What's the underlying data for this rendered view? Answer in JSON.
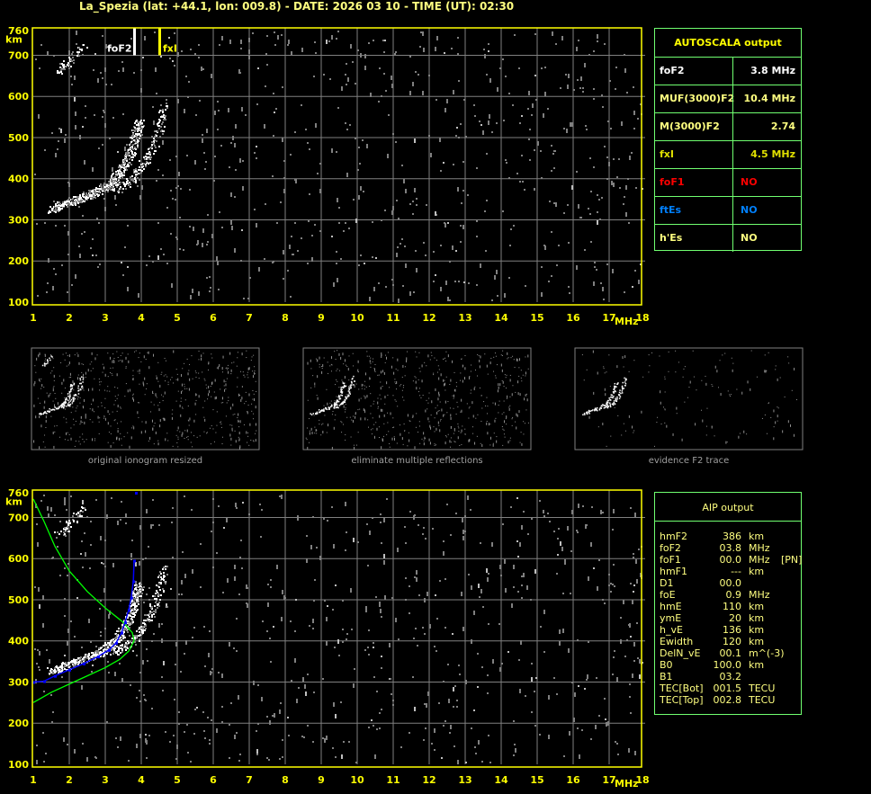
{
  "header": {
    "title": "La_Spezia (lat: +44.1, lon: 009.8) - DATE: 2026 03 10 - TIME (UT): 02:30"
  },
  "colors": {
    "axis": "#ffff00",
    "grid": "#808080",
    "trace": "#ffffff",
    "noise": "#808080",
    "profile": "#00ff00",
    "recon": "#0000ff",
    "table_border": "#70ff70"
  },
  "chart_data": [
    {
      "type": "scatter",
      "name_shown": "",
      "xlabel": "MHz",
      "ylabel": "km",
      "xlim": [
        1,
        18
      ],
      "ylim": [
        100,
        760
      ],
      "xticks": [
        "1",
        "2",
        "3",
        "4",
        "5",
        "6",
        "7",
        "8",
        "9",
        "10",
        "11",
        "12",
        "13",
        "14",
        "15",
        "16",
        "17",
        "18"
      ],
      "yticks": [
        "100",
        "200",
        "300",
        "400",
        "500",
        "600",
        "700",
        "760"
      ],
      "grid": true,
      "markers": [
        {
          "label": "foF2",
          "freq": 3.8,
          "color": "#ffffff"
        },
        {
          "label": "fxI",
          "freq": 4.5,
          "color": "#ffff00"
        }
      ],
      "o_trace": [
        [
          1.5,
          328
        ],
        [
          1.8,
          338
        ],
        [
          2.1,
          348
        ],
        [
          2.4,
          358
        ],
        [
          2.7,
          368
        ],
        [
          3.0,
          382
        ],
        [
          3.2,
          395
        ],
        [
          3.4,
          415
        ],
        [
          3.6,
          445
        ],
        [
          3.75,
          480
        ],
        [
          3.85,
          515
        ],
        [
          3.95,
          540
        ]
      ],
      "x_trace": [
        [
          3.2,
          372
        ],
        [
          3.5,
          385
        ],
        [
          3.8,
          405
        ],
        [
          4.0,
          430
        ],
        [
          4.2,
          460
        ],
        [
          4.4,
          500
        ],
        [
          4.55,
          540
        ],
        [
          4.6,
          580
        ]
      ],
      "second_hop": [
        [
          1.7,
          660
        ],
        [
          2.0,
          685
        ],
        [
          2.4,
          725
        ]
      ]
    },
    {
      "type": "line",
      "xlabel": "MHz",
      "ylabel": "km",
      "xlim": [
        1,
        18
      ],
      "ylim": [
        100,
        760
      ],
      "xticks": [
        "1",
        "2",
        "3",
        "4",
        "5",
        "6",
        "7",
        "8",
        "9",
        "10",
        "11",
        "12",
        "13",
        "14",
        "15",
        "16",
        "17",
        "18"
      ],
      "yticks": [
        "100",
        "200",
        "300",
        "400",
        "500",
        "600",
        "700",
        "760"
      ],
      "grid": true,
      "o_trace": [
        [
          1.5,
          328
        ],
        [
          1.8,
          338
        ],
        [
          2.1,
          348
        ],
        [
          2.4,
          358
        ],
        [
          2.7,
          368
        ],
        [
          3.0,
          382
        ],
        [
          3.2,
          395
        ],
        [
          3.4,
          415
        ],
        [
          3.6,
          445
        ],
        [
          3.75,
          480
        ],
        [
          3.85,
          515
        ],
        [
          3.95,
          540
        ]
      ],
      "x_trace": [
        [
          3.2,
          372
        ],
        [
          3.5,
          385
        ],
        [
          3.8,
          405
        ],
        [
          4.0,
          430
        ],
        [
          4.2,
          460
        ],
        [
          4.4,
          500
        ],
        [
          4.55,
          540
        ],
        [
          4.6,
          580
        ]
      ],
      "second_hop": [
        [
          1.7,
          660
        ],
        [
          2.0,
          685
        ],
        [
          2.4,
          725
        ]
      ],
      "recon_trace": [
        [
          1.0,
          300
        ],
        [
          1.3,
          302
        ],
        [
          1.6,
          315
        ],
        [
          2.0,
          330
        ],
        [
          2.4,
          345
        ],
        [
          2.8,
          362
        ],
        [
          3.1,
          378
        ],
        [
          3.3,
          395
        ],
        [
          3.45,
          420
        ],
        [
          3.55,
          445
        ],
        [
          3.65,
          475
        ],
        [
          3.72,
          505
        ],
        [
          3.78,
          545
        ],
        [
          3.8,
          595
        ],
        [
          3.85,
          760
        ]
      ],
      "profile": [
        [
          1.0,
          250
        ],
        [
          1.5,
          275
        ],
        [
          2.0,
          295
        ],
        [
          2.5,
          315
        ],
        [
          3.0,
          335
        ],
        [
          3.4,
          355
        ],
        [
          3.65,
          375
        ],
        [
          3.8,
          400
        ],
        [
          3.75,
          420
        ],
        [
          3.5,
          445
        ],
        [
          3.0,
          480
        ],
        [
          2.5,
          520
        ],
        [
          2.0,
          570
        ],
        [
          1.6,
          630
        ],
        [
          1.3,
          690
        ],
        [
          1.0,
          745
        ]
      ]
    }
  ],
  "thumbnails": [
    {
      "caption": "original ionogram resized"
    },
    {
      "caption": "eliminate multiple reflections"
    },
    {
      "caption": "evidence F2 trace"
    }
  ],
  "autoscala": {
    "title": "AUTOSCALA output",
    "rows": [
      {
        "key": "foF2",
        "value": "3.8 MHz",
        "color": "#ffffff"
      },
      {
        "key": "MUF(3000)F2",
        "value": "10.4 MHz",
        "color": "#ffff80"
      },
      {
        "key": "M(3000)F2",
        "value": "2.74",
        "color": "#ffff80"
      },
      {
        "key": "fxI",
        "value": "4.5 MHz",
        "color": "#e0e000"
      },
      {
        "key": "foF1",
        "value": "NO",
        "color": "#ff0000"
      },
      {
        "key": "ftEs",
        "value": "NO",
        "color": "#0080ff"
      },
      {
        "key": "h'Es",
        "value": "NO",
        "color": "#ffff80"
      }
    ]
  },
  "aip": {
    "title": "AIP output",
    "rows": [
      {
        "k": "hmF2",
        "v": "386",
        "u": "km",
        "x": ""
      },
      {
        "k": "foF2",
        "v": "03.8",
        "u": "MHz",
        "x": ""
      },
      {
        "k": "foF1",
        "v": "00.0",
        "u": "MHz",
        "x": "[PN]"
      },
      {
        "k": "hmF1",
        "v": "---",
        "u": "km",
        "x": ""
      },
      {
        "k": "D1",
        "v": "00.0",
        "u": "",
        "x": ""
      },
      {
        "k": "foE",
        "v": "0.9",
        "u": "MHz",
        "x": ""
      },
      {
        "k": "hmE",
        "v": "110",
        "u": "km",
        "x": ""
      },
      {
        "k": "ymE",
        "v": "20",
        "u": "km",
        "x": ""
      },
      {
        "k": "h_vE",
        "v": "136",
        "u": "km",
        "x": ""
      },
      {
        "k": "Ewidth",
        "v": "120",
        "u": "km",
        "x": ""
      },
      {
        "k": "DelN_vE",
        "v": "00.1",
        "u": "m^(-3)",
        "x": ""
      },
      {
        "k": "B0",
        "v": "100.0",
        "u": "km",
        "x": ""
      },
      {
        "k": "B1",
        "v": "03.2",
        "u": "",
        "x": ""
      },
      {
        "k": "TEC[Bot]",
        "v": "001.5",
        "u": "TECU",
        "x": ""
      },
      {
        "k": "TEC[Top]",
        "v": "002.8",
        "u": "TECU",
        "x": ""
      }
    ]
  }
}
